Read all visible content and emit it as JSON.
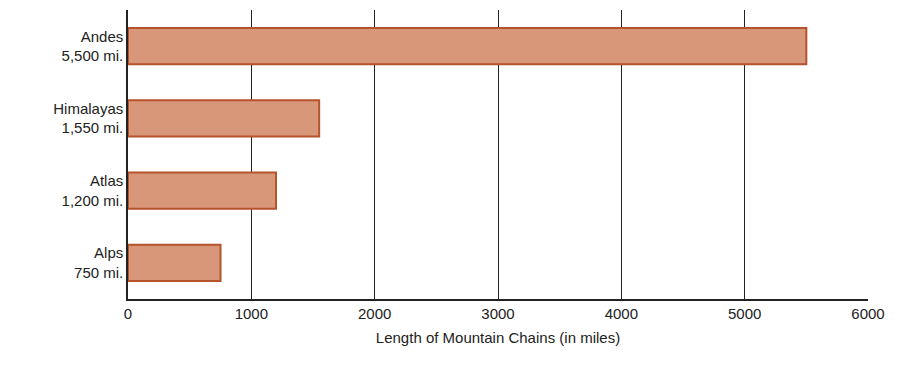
{
  "chart_data": {
    "type": "bar",
    "orientation": "horizontal",
    "categories": [
      "Andes",
      "Himalayas",
      "Atlas",
      "Alps"
    ],
    "values": [
      5500,
      1550,
      1200,
      750
    ],
    "value_labels": [
      "5,500 mi.",
      "1,550 mi.",
      "1,200 mi.",
      "750 mi."
    ],
    "color": "#d9977a",
    "xlabel": "Length of Mountain Chains (in miles)",
    "xlim": [
      0,
      6000
    ],
    "xticks": [
      0,
      1000,
      2000,
      3000,
      4000,
      5000,
      6000
    ],
    "grid": true
  }
}
